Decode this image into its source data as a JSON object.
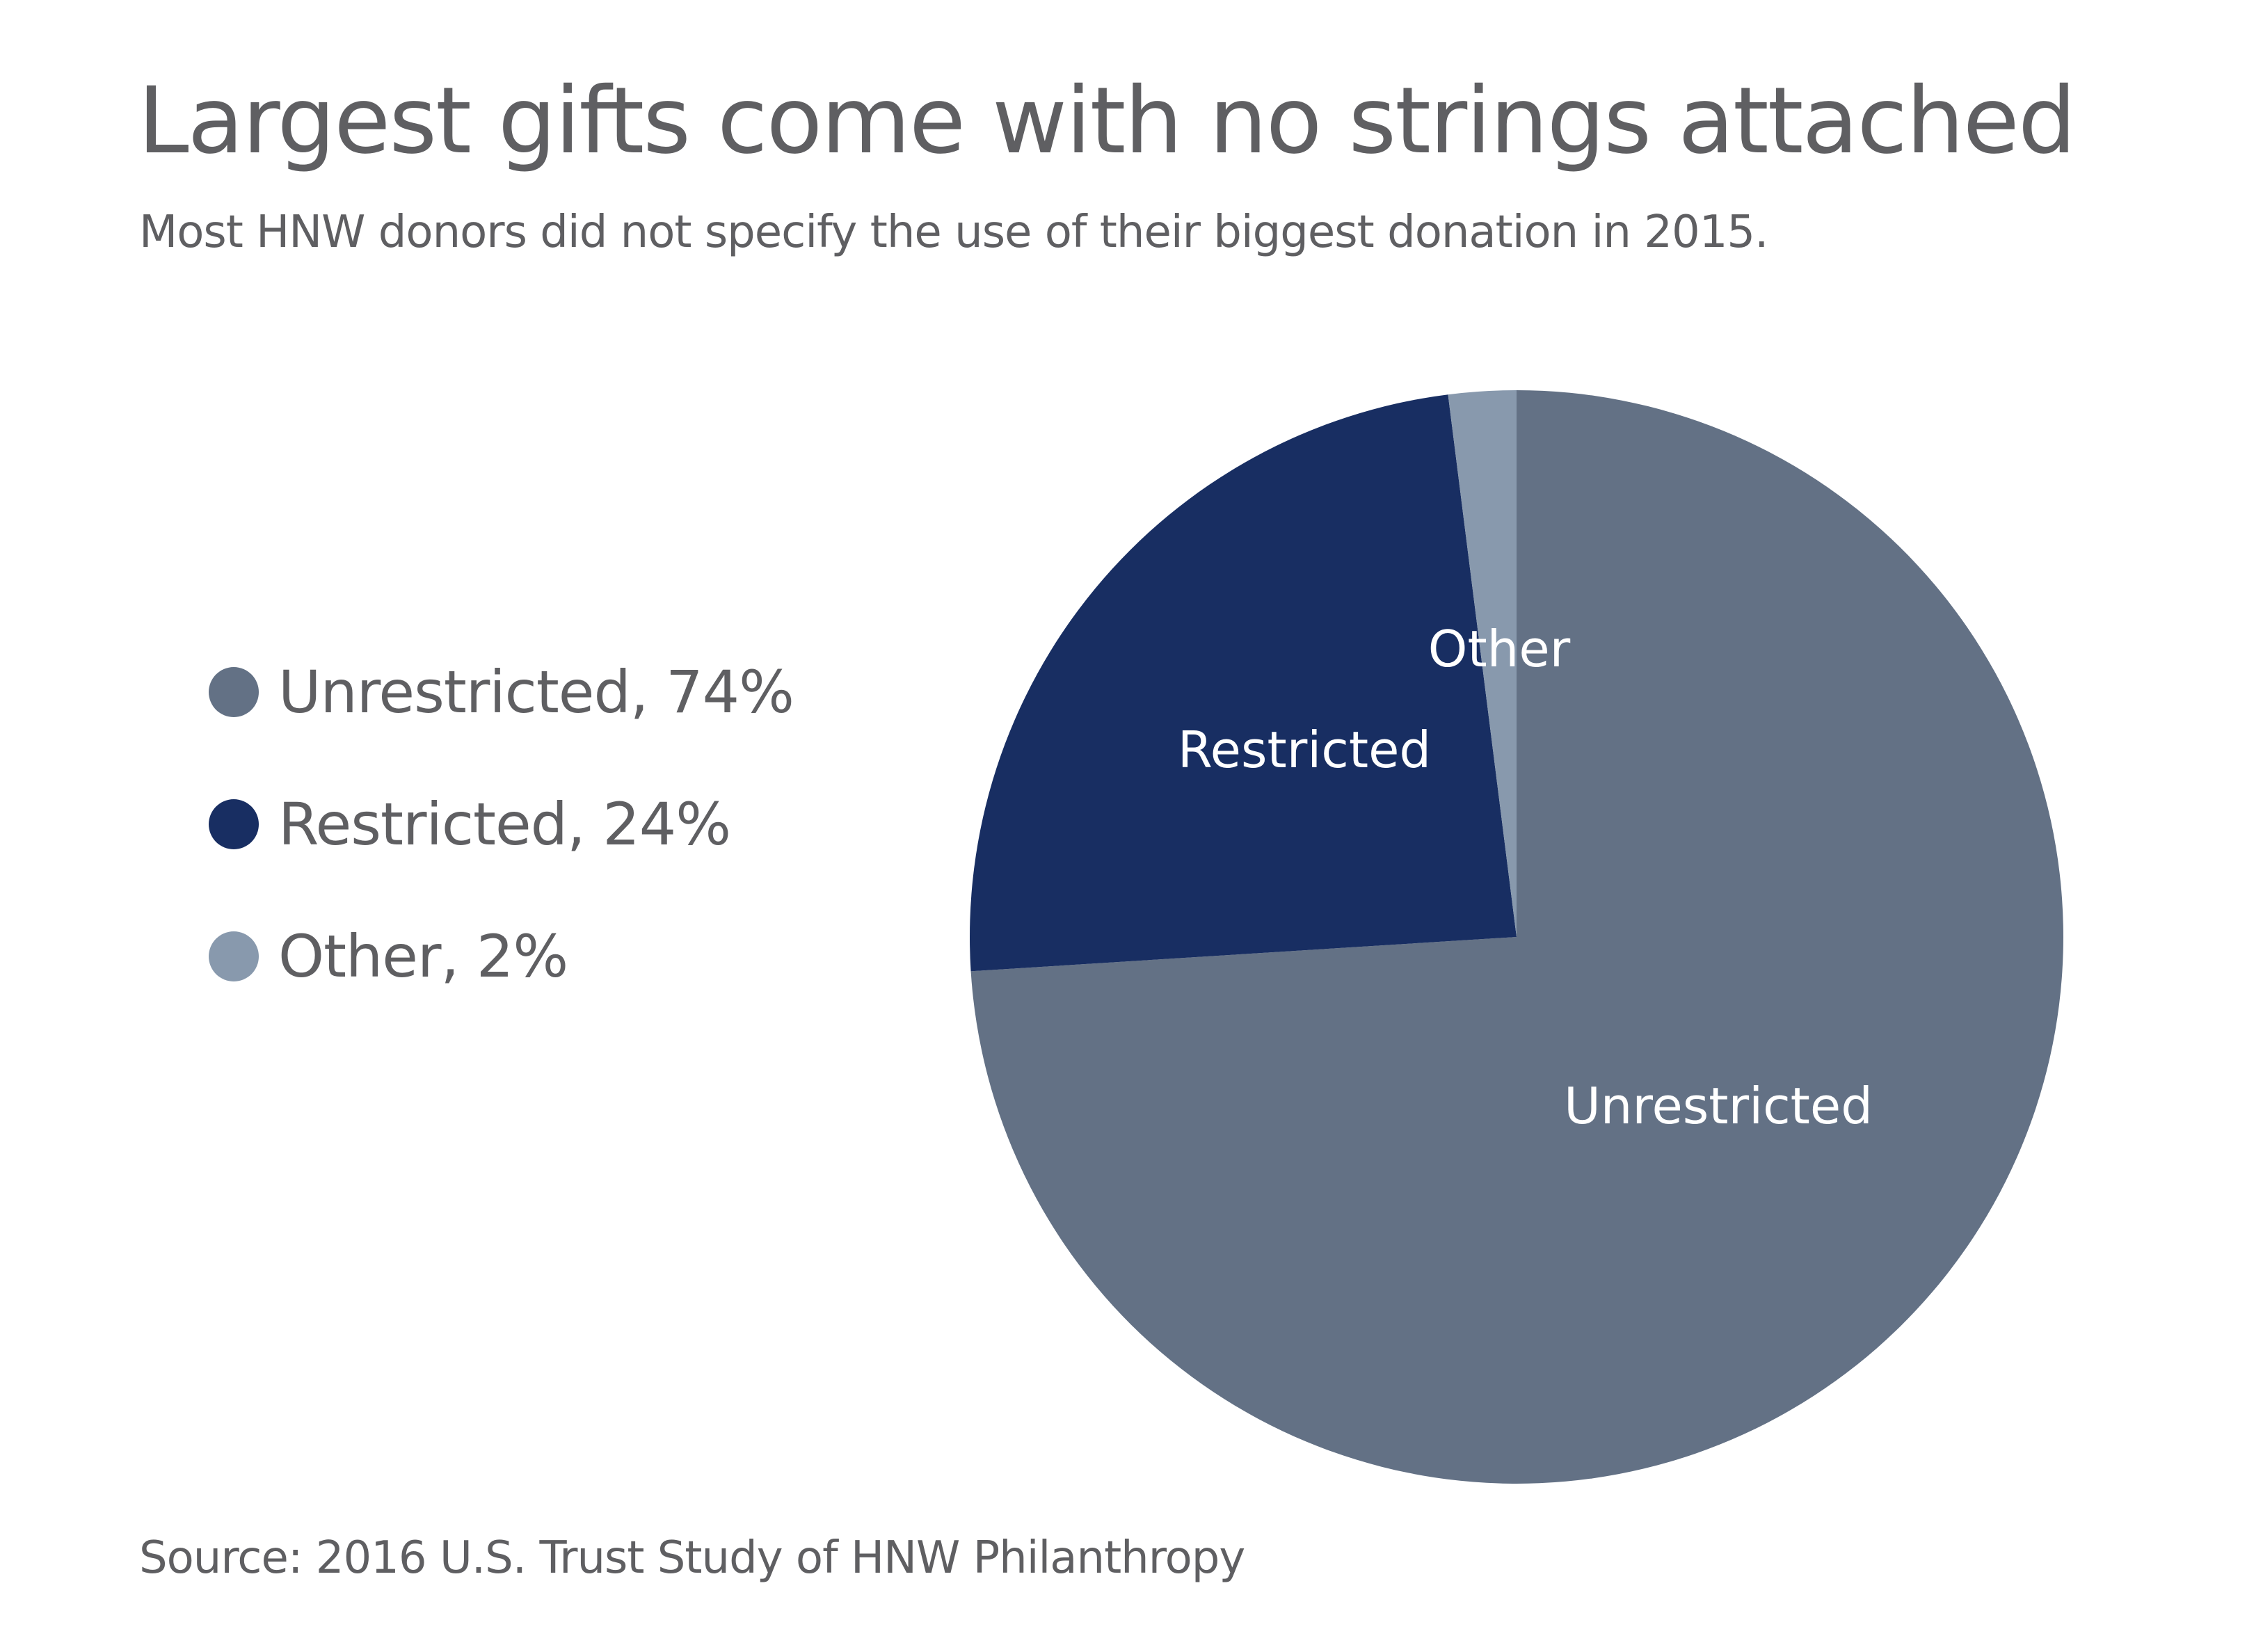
{
  "title": "Largest gifts come with no strings attached",
  "subtitle": "Most HNW donors did not specify the use of their biggest donation in 2015.",
  "source": "Source: 2016 U.S. Trust Study of HNW Philanthropy",
  "chart_data": {
    "type": "pie",
    "title": "Largest gifts come with no strings attached",
    "subtitle": "Most HNW donors did not specify the use of their biggest donation in 2015.",
    "legend_position": "left",
    "slices": [
      {
        "name": "Unrestricted",
        "value": 74,
        "legend_label": "Unrestricted, 74%",
        "slice_label": "Unrestricted",
        "color": "#637185"
      },
      {
        "name": "Restricted",
        "value": 24,
        "legend_label": "Restricted, 24%",
        "slice_label": "Restricted",
        "color": "#182e62"
      },
      {
        "name": "Other",
        "value": 2,
        "legend_label": "Other, 2%",
        "slice_label": "Other",
        "color": "#8899ad"
      }
    ]
  }
}
